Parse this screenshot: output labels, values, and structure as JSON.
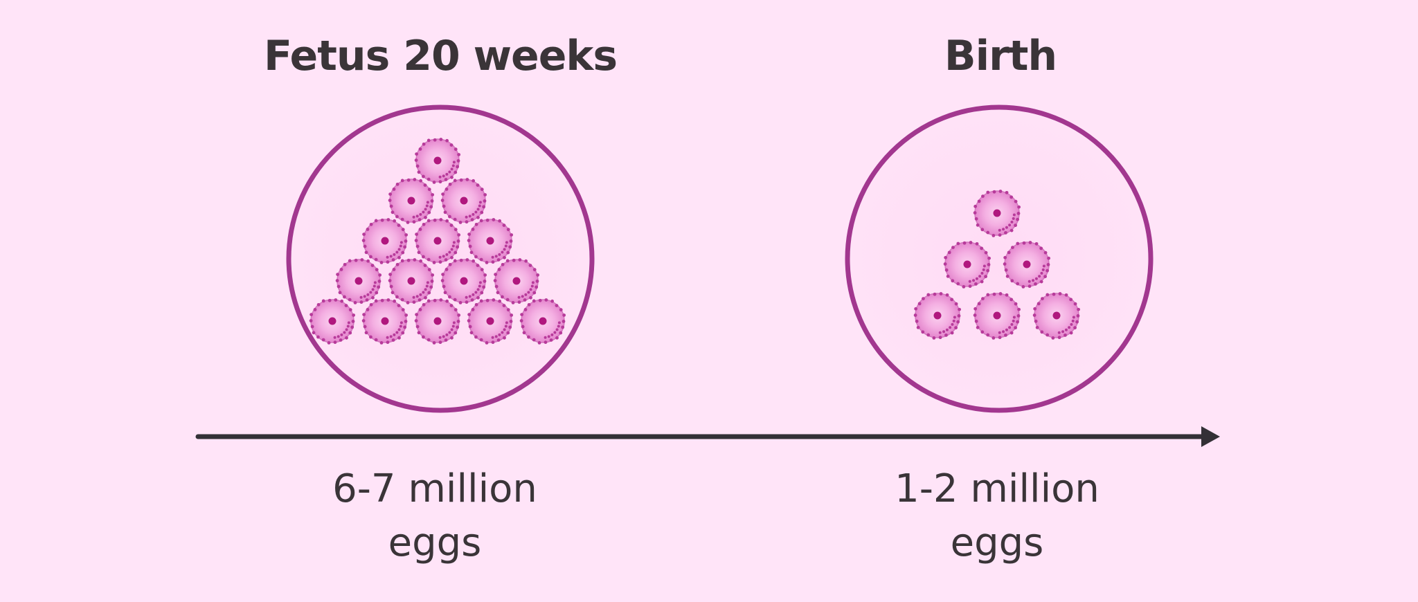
{
  "stages": [
    {
      "title": "Fetus 20 weeks",
      "caption_line1": "6-7 million",
      "caption_line2": "eggs",
      "egg_rows": [
        1,
        2,
        3,
        4,
        5
      ]
    },
    {
      "title": "Birth",
      "caption_line1": "1-2 million",
      "caption_line2": "eggs",
      "egg_rows": [
        1,
        2,
        3
      ]
    }
  ],
  "colors": {
    "background": "#ffe4f8",
    "circle_stroke": "#a2378f",
    "circle_fill": "#ffdcf5",
    "egg_fill": "#f2a0dd",
    "egg_core": "#fbd2f0",
    "egg_dots": "#b73a9a",
    "nucleus": "#b0177e",
    "timeline": "#333036",
    "text": "#3a3438"
  },
  "icons": {
    "egg": "egg-cell-icon",
    "arrow": "arrow-right-icon"
  }
}
